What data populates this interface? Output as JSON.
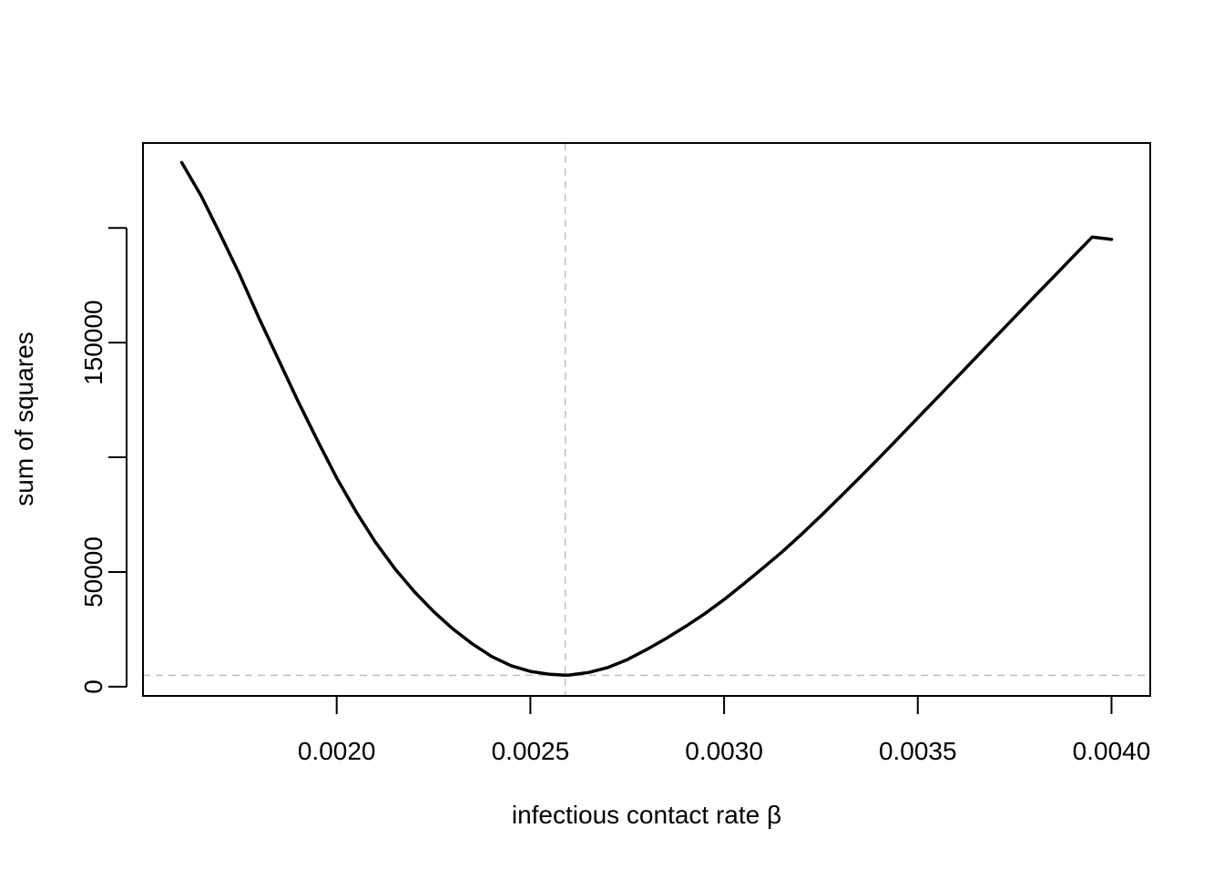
{
  "chart_data": {
    "type": "line",
    "title": "",
    "xlabel": "infectious contact rate β",
    "ylabel": "sum of squares",
    "xlim": [
      0.0015,
      0.0041
    ],
    "ylim": [
      -4000,
      237000
    ],
    "x_ticks": [
      0.002,
      0.0025,
      0.003,
      0.0035,
      0.004
    ],
    "x_tick_labels": [
      "0.0020",
      "0.0025",
      "0.0030",
      "0.0035",
      "0.0040"
    ],
    "y_ticks": [
      0,
      50000,
      100000,
      150000,
      200000
    ],
    "y_tick_labels": [
      "0",
      "50000",
      "",
      "150000",
      ""
    ],
    "grid": false,
    "legend": "none",
    "series": [
      {
        "color": "#000000",
        "x": [
          0.0016,
          0.00165,
          0.0017,
          0.00175,
          0.0018,
          0.00185,
          0.0019,
          0.00195,
          0.002,
          0.00205,
          0.0021,
          0.00215,
          0.0022,
          0.00225,
          0.0023,
          0.00235,
          0.0024,
          0.00245,
          0.0025,
          0.00255,
          0.00259,
          0.0026,
          0.00265,
          0.0027,
          0.00275,
          0.0028,
          0.00285,
          0.0029,
          0.00295,
          0.003,
          0.00305,
          0.0031,
          0.00315,
          0.0032,
          0.00325,
          0.0033,
          0.00335,
          0.0034,
          0.00345,
          0.0035,
          0.00355,
          0.0036,
          0.00365,
          0.0037,
          0.00375,
          0.0038,
          0.00385,
          0.0039,
          0.00395,
          0.004
        ],
        "y": [
          228500,
          214000,
          197000,
          179500,
          160500,
          142500,
          124500,
          107500,
          91000,
          76300,
          63000,
          51500,
          41500,
          32800,
          25200,
          18700,
          13200,
          9200,
          6700,
          5400,
          5000,
          5100,
          6200,
          8400,
          11800,
          16200,
          21000,
          26200,
          31800,
          38000,
          44700,
          51700,
          58800,
          66500,
          74500,
          82800,
          91200,
          99700,
          108400,
          117200,
          125900,
          134700,
          143500,
          152300,
          161100,
          169900,
          178600,
          187300,
          196000,
          195000
        ]
      }
    ],
    "reference_lines": [
      {
        "orientation": "vertical",
        "value": 0.00259,
        "color": "#bebebe",
        "style": "dashed"
      },
      {
        "orientation": "horizontal",
        "value": 5000,
        "color": "#bebebe",
        "style": "dashed"
      }
    ]
  }
}
